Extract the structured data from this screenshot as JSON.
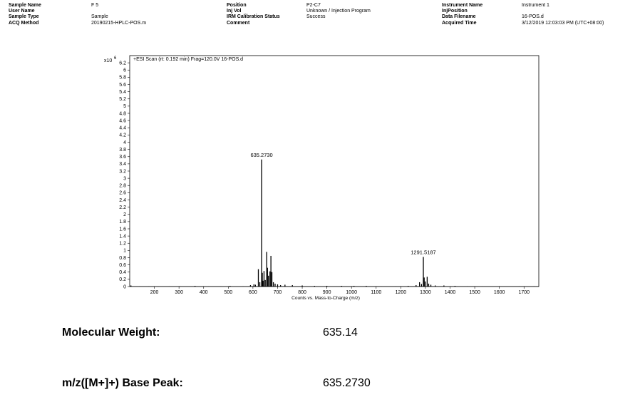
{
  "header": {
    "col1": [
      {
        "label": "Sample Name",
        "value": "F 5"
      },
      {
        "label": "User Name",
        "value": ""
      },
      {
        "label": "Sample Type",
        "value": "Sample"
      },
      {
        "label": "ACQ Method",
        "value": "20190215-HPLC-POS.m"
      }
    ],
    "col2": [
      {
        "label": "Position",
        "value": "P2-C7"
      },
      {
        "label": "Inj Vol",
        "value": "Unknown / Injection Program"
      },
      {
        "label": "IRM Calibration Status",
        "value": "Success"
      },
      {
        "label": "Comment",
        "value": ""
      }
    ],
    "col3": [
      {
        "label": "Instrument Name",
        "value": "Instrument 1"
      },
      {
        "label": "InjPosition",
        "value": ""
      },
      {
        "label": "Data Filename",
        "value": "16-POS.d"
      },
      {
        "label": "Acquired Time",
        "value": "3/12/2019 12:03:03 PM (UTC+08:00)"
      }
    ]
  },
  "chart_data": {
    "type": "bar",
    "title": "+ESI Scan (rt: 0.192 min) Frag=120.0V 16-POS.d",
    "y_multiplier": "x10",
    "y_exponent": "6",
    "xlabel": "Counts vs. Mass-to-Charge (m/z)",
    "ylabel": "",
    "xlim": [
      100,
      1760
    ],
    "ylim": [
      0,
      6.4
    ],
    "x_ticks": [
      200,
      300,
      400,
      500,
      600,
      700,
      800,
      900,
      1000,
      1100,
      1200,
      1300,
      1400,
      1500,
      1600,
      1700
    ],
    "y_ticks": [
      "0",
      "0.2",
      "0.4",
      "0.6",
      "0.8",
      "1",
      "1.2",
      "1.4",
      "1.6",
      "1.8",
      "2",
      "2.2",
      "2.4",
      "2.6",
      "2.8",
      "3",
      "3.2",
      "3.4",
      "3.6",
      "3.8",
      "4",
      "4.2",
      "4.4",
      "4.6",
      "4.8",
      "5",
      "5.2",
      "5.4",
      "5.6",
      "5.8",
      "6",
      "6.2"
    ],
    "peaks": [
      {
        "mz": 105,
        "i": 0.03
      },
      {
        "mz": 140,
        "i": 0.01
      },
      {
        "mz": 178,
        "i": 0.01
      },
      {
        "mz": 215,
        "i": 0.01
      },
      {
        "mz": 260,
        "i": 0.01
      },
      {
        "mz": 305,
        "i": 0.01
      },
      {
        "mz": 365,
        "i": 0.02
      },
      {
        "mz": 420,
        "i": 0.01
      },
      {
        "mz": 470,
        "i": 0.01
      },
      {
        "mz": 507,
        "i": 0.02
      },
      {
        "mz": 560,
        "i": 0.01
      },
      {
        "mz": 590,
        "i": 0.04
      },
      {
        "mz": 604,
        "i": 0.06
      },
      {
        "mz": 610,
        "i": 0.05
      },
      {
        "mz": 622,
        "i": 0.48
      },
      {
        "mz": 628,
        "i": 0.12
      },
      {
        "mz": 635.273,
        "i": 3.52
      },
      {
        "mz": 638,
        "i": 0.38
      },
      {
        "mz": 641,
        "i": 0.16
      },
      {
        "mz": 645,
        "i": 0.43
      },
      {
        "mz": 650,
        "i": 0.18
      },
      {
        "mz": 656,
        "i": 0.96
      },
      {
        "mz": 659,
        "i": 0.52
      },
      {
        "mz": 663,
        "i": 0.3
      },
      {
        "mz": 669,
        "i": 0.42
      },
      {
        "mz": 673,
        "i": 0.85
      },
      {
        "mz": 677,
        "i": 0.4
      },
      {
        "mz": 683,
        "i": 0.12
      },
      {
        "mz": 690,
        "i": 0.08
      },
      {
        "mz": 700,
        "i": 0.06
      },
      {
        "mz": 712,
        "i": 0.04
      },
      {
        "mz": 730,
        "i": 0.05
      },
      {
        "mz": 760,
        "i": 0.04
      },
      {
        "mz": 800,
        "i": 0.03
      },
      {
        "mz": 850,
        "i": 0.02
      },
      {
        "mz": 900,
        "i": 0.02
      },
      {
        "mz": 960,
        "i": 0.02
      },
      {
        "mz": 1010,
        "i": 0.02
      },
      {
        "mz": 1060,
        "i": 0.02
      },
      {
        "mz": 1120,
        "i": 0.01
      },
      {
        "mz": 1180,
        "i": 0.01
      },
      {
        "mz": 1230,
        "i": 0.02
      },
      {
        "mz": 1262,
        "i": 0.04
      },
      {
        "mz": 1276,
        "i": 0.12
      },
      {
        "mz": 1284,
        "i": 0.07
      },
      {
        "mz": 1291.5187,
        "i": 0.82
      },
      {
        "mz": 1295,
        "i": 0.25
      },
      {
        "mz": 1299,
        "i": 0.14
      },
      {
        "mz": 1307,
        "i": 0.27
      },
      {
        "mz": 1313,
        "i": 0.08
      },
      {
        "mz": 1322,
        "i": 0.05
      },
      {
        "mz": 1340,
        "i": 0.03
      },
      {
        "mz": 1375,
        "i": 0.03
      },
      {
        "mz": 1420,
        "i": 0.02
      },
      {
        "mz": 1470,
        "i": 0.01
      },
      {
        "mz": 1530,
        "i": 0.01
      },
      {
        "mz": 1600,
        "i": 0.01
      },
      {
        "mz": 1680,
        "i": 0.01
      },
      {
        "mz": 1740,
        "i": 0.01
      }
    ],
    "annotations": [
      {
        "mz": 635.273,
        "i": 3.52,
        "text": "635.2730"
      },
      {
        "mz": 1291.5187,
        "i": 0.82,
        "text": "1291.5187"
      }
    ]
  },
  "summary": {
    "molecular_weight_label": "Molecular Weight:",
    "molecular_weight_value": "635.14",
    "base_peak_label": "m/z([M+]+) Base Peak:",
    "base_peak_value": "635.2730"
  }
}
